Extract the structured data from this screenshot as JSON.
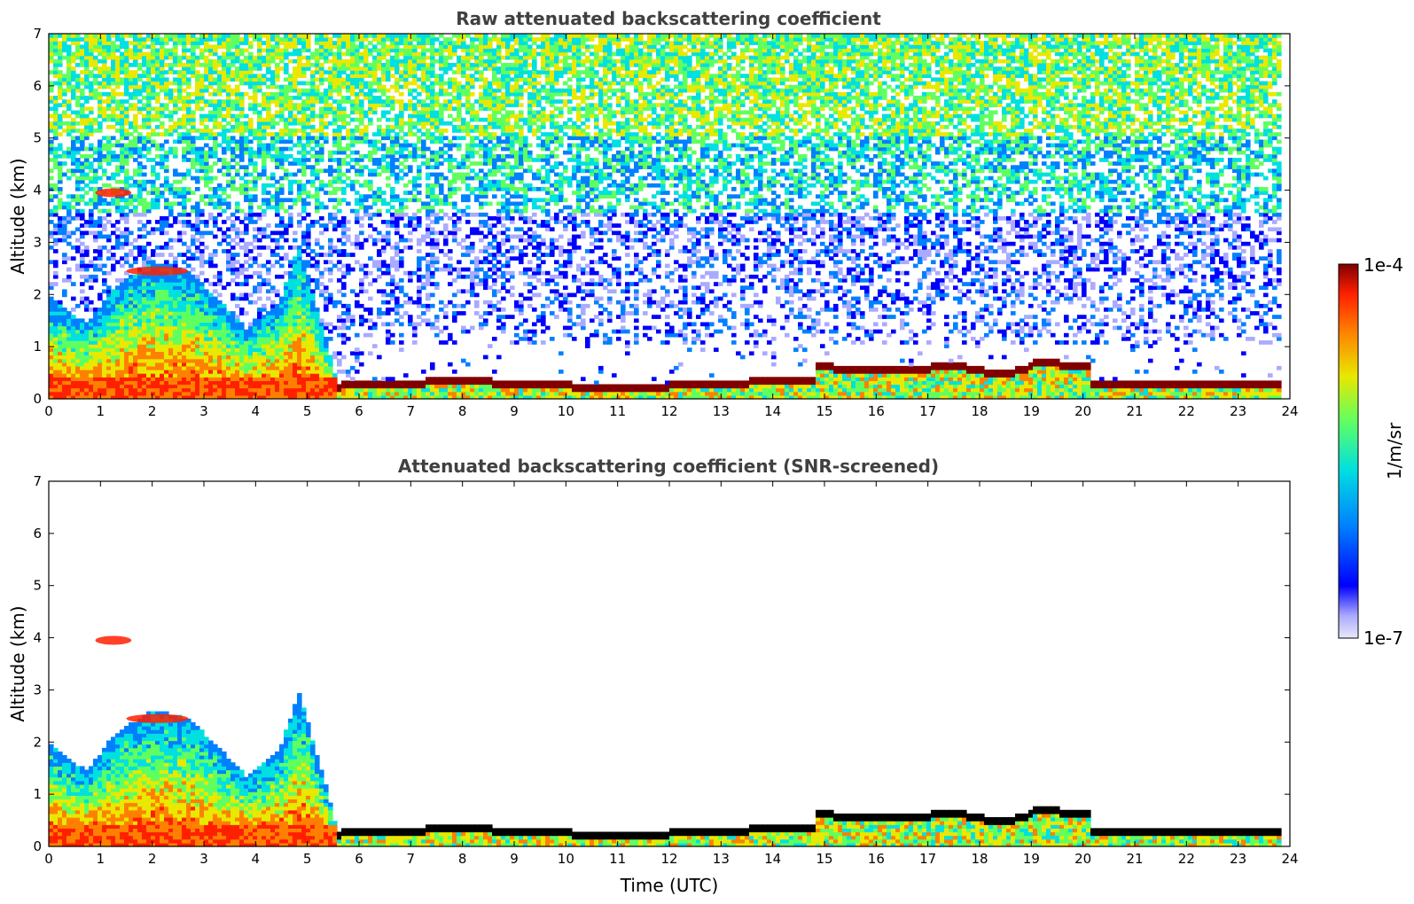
{
  "chart_data": [
    {
      "type": "heatmap",
      "title": "Raw attenuated backscattering coefficient",
      "xlabel": "",
      "ylabel": "Altitude (km)",
      "xlim": [
        0,
        24
      ],
      "ylim": [
        0,
        7
      ],
      "x_ticks": [
        "0",
        "1",
        "2",
        "3",
        "4",
        "5",
        "6",
        "7",
        "8",
        "9",
        "10",
        "11",
        "12",
        "13",
        "14",
        "15",
        "16",
        "17",
        "18",
        "19",
        "20",
        "21",
        "22",
        "23",
        "24"
      ],
      "y_ticks": [
        "0",
        "1",
        "2",
        "3",
        "4",
        "5",
        "6",
        "7"
      ],
      "data_end_x": 23.8,
      "features": [
        {
          "name": "surface aerosol layer",
          "t_start": 0,
          "t_end": 5.3,
          "altitude_top": 2.0
        },
        {
          "name": "elevated aerosol plume",
          "t_start": 1.5,
          "t_end": 2.7,
          "altitude": 2.45
        },
        {
          "name": "elevated aerosol layer",
          "t_start": 0.0,
          "t_end": 2.5,
          "altitude": 3.95
        },
        {
          "name": "convective plumes",
          "t_start": 4.7,
          "t_end": 6.3,
          "altitude_top": 2.9
        },
        {
          "name": "low cloud base",
          "t_start": 5.2,
          "t_end": 14.8,
          "altitude": 0.28
        },
        {
          "name": "low cloud base",
          "t_start": 14.8,
          "t_end": 17.0,
          "altitude": 0.55
        },
        {
          "name": "low cloud base",
          "t_start": 17.0,
          "t_end": 20.1,
          "altitude": 0.6
        },
        {
          "name": "low cloud base",
          "t_start": 20.1,
          "t_end": 23.8,
          "altitude": 0.25
        }
      ],
      "noise": "high above ~1 km from 6 UTC onward"
    },
    {
      "type": "heatmap",
      "title": "Attenuated backscattering coefficient (SNR-screened)",
      "xlabel": "Time (UTC)",
      "ylabel": "Altitude (km)",
      "xlim": [
        0,
        24
      ],
      "ylim": [
        0,
        7
      ],
      "x_ticks": [
        "0",
        "1",
        "2",
        "3",
        "4",
        "5",
        "6",
        "7",
        "8",
        "9",
        "10",
        "11",
        "12",
        "13",
        "14",
        "15",
        "16",
        "17",
        "18",
        "19",
        "20",
        "21",
        "22",
        "23",
        "24"
      ],
      "y_ticks": [
        "0",
        "1",
        "2",
        "3",
        "4",
        "5",
        "6",
        "7"
      ],
      "data_end_x": 23.8,
      "cloud_color": "#000000",
      "noise": "screened out"
    }
  ],
  "colorbar": {
    "label": "1/m/sr",
    "max_label": "1e-4",
    "min_label": "1e-7",
    "scale": "log",
    "range": [
      1e-07,
      0.0001
    ],
    "colors": [
      "#e8e8f8",
      "#aaaaff",
      "#0000ff",
      "#0080ff",
      "#00e0e0",
      "#60ff60",
      "#e8e800",
      "#ff8000",
      "#ff2000",
      "#800000"
    ]
  }
}
